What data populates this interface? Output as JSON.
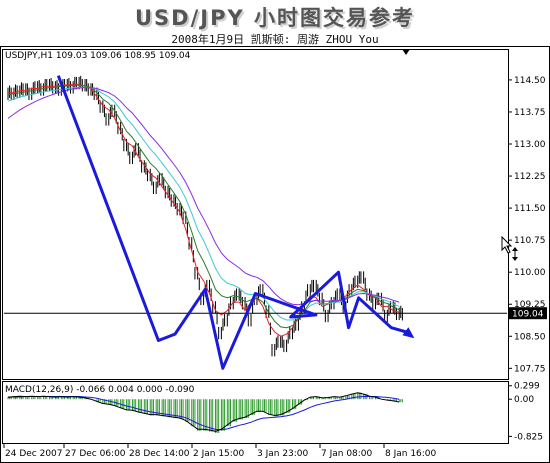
{
  "header": {
    "title": "USD/JPY 小时图交易参考",
    "subtitle": "2008年1月9日  凯斯顿: 周游 ZHOU You"
  },
  "chart_data": {
    "type": "line",
    "symbol_info": "USDJPY,H1  109.03 109.06 108.95 109.04",
    "price_axis": {
      "ylim": [
        107.5,
        115.2
      ],
      "ticks": [
        "114.50",
        "113.75",
        "113.00",
        "112.25",
        "111.50",
        "110.75",
        "110.00",
        "109.25",
        "108.50",
        "107.75"
      ],
      "tick_values": [
        114.5,
        113.75,
        113.0,
        112.25,
        111.5,
        110.75,
        110.0,
        109.25,
        108.5,
        107.75
      ]
    },
    "current_price": {
      "label": "109.04",
      "value": 109.04
    },
    "x_labels": [
      "24 Dec 2007",
      "27 Dec 06:00",
      "28 Dec 14:00",
      "2 Jan 15:00",
      "3 Jan 23:00",
      "7 Jan 08:00",
      "8 Jan 16:00"
    ],
    "price_series": {
      "name": "USDJPY",
      "values": [
        114.2,
        114.25,
        114.3,
        114.2,
        114.35,
        114.3,
        114.4,
        114.35,
        114.3,
        114.4,
        114.35,
        114.45,
        114.4,
        114.3,
        114.2,
        113.9,
        113.6,
        113.8,
        113.4,
        113.0,
        112.7,
        112.9,
        112.5,
        112.3,
        112.0,
        112.2,
        111.9,
        111.7,
        111.5,
        111.3,
        110.7,
        110.0,
        109.4,
        109.7,
        109.2,
        108.6,
        108.9,
        109.3,
        109.5,
        109.3,
        108.9,
        109.4,
        109.6,
        109.1,
        108.2,
        108.4,
        108.3,
        108.6,
        108.8,
        109.2,
        109.6,
        109.7,
        109.4,
        109.0,
        109.3,
        109.5,
        109.2,
        109.6,
        109.8,
        109.9,
        109.5,
        109.3,
        109.4,
        109.0,
        109.2,
        109.05,
        109.04
      ]
    },
    "moving_averages": [
      {
        "color": "#e8202a",
        "values": [
          114.2,
          114.2,
          114.25,
          114.25,
          114.3,
          114.3,
          114.35,
          114.35,
          114.35,
          114.38,
          114.38,
          114.4,
          114.4,
          114.35,
          114.3,
          114.1,
          113.9,
          113.8,
          113.6,
          113.3,
          113.05,
          112.95,
          112.7,
          112.5,
          112.3,
          112.2,
          112.0,
          111.8,
          111.6,
          111.4,
          111.0,
          110.5,
          110.0,
          109.8,
          109.5,
          109.1,
          109.0,
          109.1,
          109.3,
          109.3,
          109.1,
          109.3,
          109.4,
          109.2,
          108.8,
          108.6,
          108.5,
          108.55,
          108.7,
          108.95,
          109.25,
          109.45,
          109.4,
          109.2,
          109.25,
          109.35,
          109.3,
          109.45,
          109.6,
          109.7,
          109.6,
          109.45,
          109.4,
          109.2,
          109.2,
          109.1,
          109.06
        ]
      },
      {
        "color": "#2a7a2a",
        "values": [
          114.15,
          114.18,
          114.2,
          114.22,
          114.25,
          114.27,
          114.3,
          114.32,
          114.33,
          114.35,
          114.36,
          114.37,
          114.38,
          114.36,
          114.32,
          114.2,
          114.05,
          113.95,
          113.78,
          113.55,
          113.3,
          113.15,
          112.95,
          112.75,
          112.55,
          112.42,
          112.25,
          112.05,
          111.85,
          111.65,
          111.35,
          110.95,
          110.5,
          110.25,
          109.95,
          109.6,
          109.45,
          109.4,
          109.45,
          109.42,
          109.3,
          109.35,
          109.4,
          109.3,
          109.05,
          108.85,
          108.72,
          108.7,
          108.75,
          108.9,
          109.1,
          109.3,
          109.35,
          109.25,
          109.27,
          109.32,
          109.3,
          109.4,
          109.52,
          109.6,
          109.57,
          109.47,
          109.42,
          109.3,
          109.27,
          109.18,
          109.12
        ]
      },
      {
        "color": "#3dc8d0",
        "values": [
          114.0,
          114.05,
          114.1,
          114.13,
          114.16,
          114.19,
          114.22,
          114.24,
          114.26,
          114.28,
          114.3,
          114.32,
          114.33,
          114.33,
          114.32,
          114.27,
          114.18,
          114.1,
          113.98,
          113.8,
          113.6,
          113.45,
          113.26,
          113.07,
          112.88,
          112.73,
          112.55,
          112.37,
          112.18,
          111.99,
          111.72,
          111.38,
          111.0,
          110.74,
          110.43,
          110.09,
          109.86,
          109.74,
          109.7,
          109.63,
          109.5,
          109.47,
          109.48,
          109.41,
          109.24,
          109.07,
          108.94,
          108.88,
          108.88,
          108.95,
          109.08,
          109.22,
          109.28,
          109.25,
          109.26,
          109.3,
          109.3,
          109.36,
          109.46,
          109.54,
          109.54,
          109.49,
          109.45,
          109.37,
          109.33,
          109.26,
          109.2
        ]
      },
      {
        "color": "#8a2be2",
        "values": [
          113.6,
          113.7,
          113.8,
          113.88,
          113.95,
          114.02,
          114.08,
          114.13,
          114.18,
          114.22,
          114.26,
          114.29,
          114.31,
          114.32,
          114.32,
          114.3,
          114.25,
          114.2,
          114.12,
          114.0,
          113.85,
          113.72,
          113.55,
          113.38,
          113.2,
          113.05,
          112.88,
          112.7,
          112.52,
          112.33,
          112.1,
          111.82,
          111.5,
          111.25,
          110.98,
          110.68,
          110.45,
          110.3,
          110.2,
          110.1,
          109.98,
          109.92,
          109.88,
          109.8,
          109.66,
          109.5,
          109.38,
          109.3,
          109.25,
          109.24,
          109.27,
          109.32,
          109.34,
          109.32,
          109.32,
          109.34,
          109.34,
          109.37,
          109.43,
          109.49,
          109.5,
          109.48,
          109.46,
          109.42,
          109.39,
          109.34,
          109.3
        ]
      }
    ],
    "annotation_path": {
      "color": "#1a1adc",
      "x": [
        0.108,
        0.307,
        0.34,
        0.4,
        0.435,
        0.5,
        0.62,
        0.57,
        0.665,
        0.685,
        0.705,
        0.77,
        0.8
      ],
      "y": [
        114.6,
        108.4,
        108.55,
        109.6,
        107.75,
        109.5,
        109.0,
        108.95,
        110.0,
        108.7,
        109.4,
        108.7,
        108.6
      ]
    },
    "annotation_arrow_tip": {
      "x": 0.8,
      "y": 108.5
    },
    "macd": {
      "label": "MACD(12,26,9) -0.066 0.004 0.000 -0.090",
      "ticks": [
        "0.299",
        "0.00",
        "-0.825"
      ],
      "tick_values": [
        0.299,
        0.0,
        -0.825
      ],
      "ylim": [
        -0.95,
        0.36
      ],
      "histogram": [
        0.05,
        0.06,
        0.07,
        0.06,
        0.07,
        0.06,
        0.07,
        0.06,
        0.05,
        0.06,
        0.05,
        0.06,
        0.05,
        0.03,
        0.0,
        -0.05,
        -0.1,
        -0.12,
        -0.15,
        -0.2,
        -0.25,
        -0.26,
        -0.3,
        -0.33,
        -0.36,
        -0.36,
        -0.38,
        -0.4,
        -0.42,
        -0.44,
        -0.5,
        -0.6,
        -0.7,
        -0.7,
        -0.72,
        -0.75,
        -0.7,
        -0.6,
        -0.5,
        -0.45,
        -0.42,
        -0.35,
        -0.28,
        -0.28,
        -0.35,
        -0.38,
        -0.36,
        -0.3,
        -0.22,
        -0.12,
        -0.02,
        0.05,
        0.06,
        0.03,
        0.04,
        0.06,
        0.05,
        0.08,
        0.12,
        0.15,
        0.12,
        0.07,
        0.05,
        0.0,
        -0.02,
        -0.04,
        -0.066
      ],
      "signal": [
        0.04,
        0.05,
        0.05,
        0.06,
        0.06,
        0.06,
        0.06,
        0.06,
        0.06,
        0.06,
        0.06,
        0.06,
        0.06,
        0.05,
        0.04,
        0.02,
        -0.01,
        -0.04,
        -0.07,
        -0.11,
        -0.15,
        -0.18,
        -0.22,
        -0.25,
        -0.28,
        -0.3,
        -0.32,
        -0.34,
        -0.36,
        -0.38,
        -0.41,
        -0.47,
        -0.54,
        -0.59,
        -0.63,
        -0.67,
        -0.68,
        -0.66,
        -0.62,
        -0.58,
        -0.55,
        -0.51,
        -0.46,
        -0.42,
        -0.41,
        -0.4,
        -0.39,
        -0.37,
        -0.34,
        -0.29,
        -0.24,
        -0.18,
        -0.13,
        -0.1,
        -0.07,
        -0.04,
        -0.02,
        0.0,
        0.03,
        0.05,
        0.06,
        0.06,
        0.06,
        0.05,
        0.04,
        0.02,
        0.0
      ]
    }
  }
}
